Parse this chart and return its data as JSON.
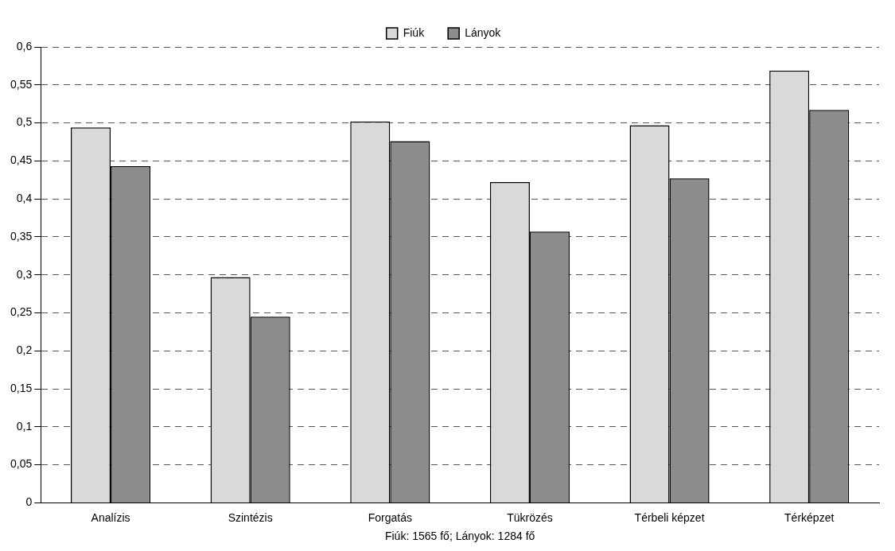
{
  "chart_data": {
    "type": "bar",
    "xlabel": "Fiúk: 1565 fő; Lányok: 1284 fő",
    "categories": [
      "Analízis",
      "Szintézis",
      "Forgatás",
      "Tükrözés",
      "Térbeli képzet",
      "Térképzet"
    ],
    "series": [
      {
        "name": "Fiúk",
        "color": "#d9d9d9",
        "values": [
          0.494,
          0.297,
          0.502,
          0.422,
          0.497,
          0.569
        ]
      },
      {
        "name": "Lányok",
        "color": "#8c8c8c",
        "values": [
          0.443,
          0.245,
          0.476,
          0.357,
          0.427,
          0.517
        ]
      }
    ],
    "ylim": [
      0,
      0.6
    ],
    "yticks": [
      {
        "value": 0,
        "label": "0"
      },
      {
        "value": 0.05,
        "label": "0,05"
      },
      {
        "value": 0.1,
        "label": "0,1"
      },
      {
        "value": 0.15,
        "label": "0,15"
      },
      {
        "value": 0.2,
        "label": "0,2"
      },
      {
        "value": 0.25,
        "label": "0,25"
      },
      {
        "value": 0.3,
        "label": "0,3"
      },
      {
        "value": 0.35,
        "label": "0,35"
      },
      {
        "value": 0.4,
        "label": "0,4"
      },
      {
        "value": 0.45,
        "label": "0,45"
      },
      {
        "value": 0.5,
        "label": "0,5"
      },
      {
        "value": 0.55,
        "label": "0,55"
      },
      {
        "value": 0.6,
        "label": "0,6"
      }
    ],
    "grid": "y",
    "legend": "top"
  }
}
